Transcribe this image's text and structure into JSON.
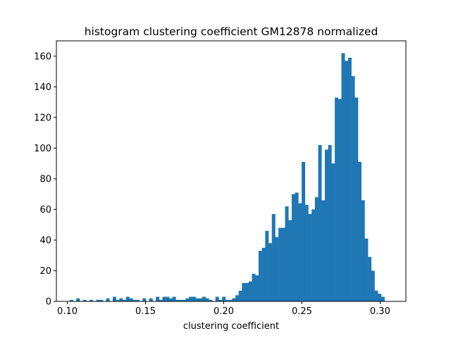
{
  "chart_data": {
    "type": "bar",
    "title": "histogram clustering coefficient GM12878 normalized",
    "xlabel": "clustering coefficient",
    "ylabel": "",
    "xlim": [
      0.093,
      0.3165
    ],
    "ylim": [
      0,
      170
    ],
    "x_ticks": [
      "0.10",
      "0.15",
      "0.20",
      "0.25",
      "0.30"
    ],
    "x_tick_values": [
      0.1,
      0.15,
      0.2,
      0.25,
      0.3
    ],
    "y_ticks": [
      "0",
      "20",
      "40",
      "60",
      "80",
      "100",
      "120",
      "140",
      "160"
    ],
    "y_tick_values": [
      0,
      20,
      40,
      60,
      80,
      100,
      120,
      140,
      160
    ],
    "bin_start": 0.1015,
    "bin_width": 0.002119,
    "counts": [
      1,
      0,
      2,
      0,
      1,
      0,
      1,
      0,
      1,
      1,
      0,
      2,
      0,
      3,
      1,
      2,
      1,
      3,
      2,
      1,
      1,
      0,
      2,
      0,
      2,
      0,
      3,
      1,
      3,
      3,
      2,
      3,
      1,
      1,
      1,
      2,
      3,
      3,
      2,
      2,
      3,
      2,
      1,
      0,
      3,
      1,
      3,
      1,
      1,
      2,
      4,
      7,
      12,
      12,
      13,
      18,
      17,
      33,
      35,
      46,
      38,
      57,
      42,
      48,
      48,
      62,
      53,
      70,
      71,
      64,
      91,
      63,
      57,
      60,
      68,
      102,
      66,
      99,
      102,
      90,
      133,
      132,
      162,
      157,
      159,
      147,
      133,
      91,
      66,
      41,
      29,
      20,
      7,
      5,
      3
    ],
    "bar_color": "#1f77b4",
    "grid": false,
    "legend": "none"
  }
}
